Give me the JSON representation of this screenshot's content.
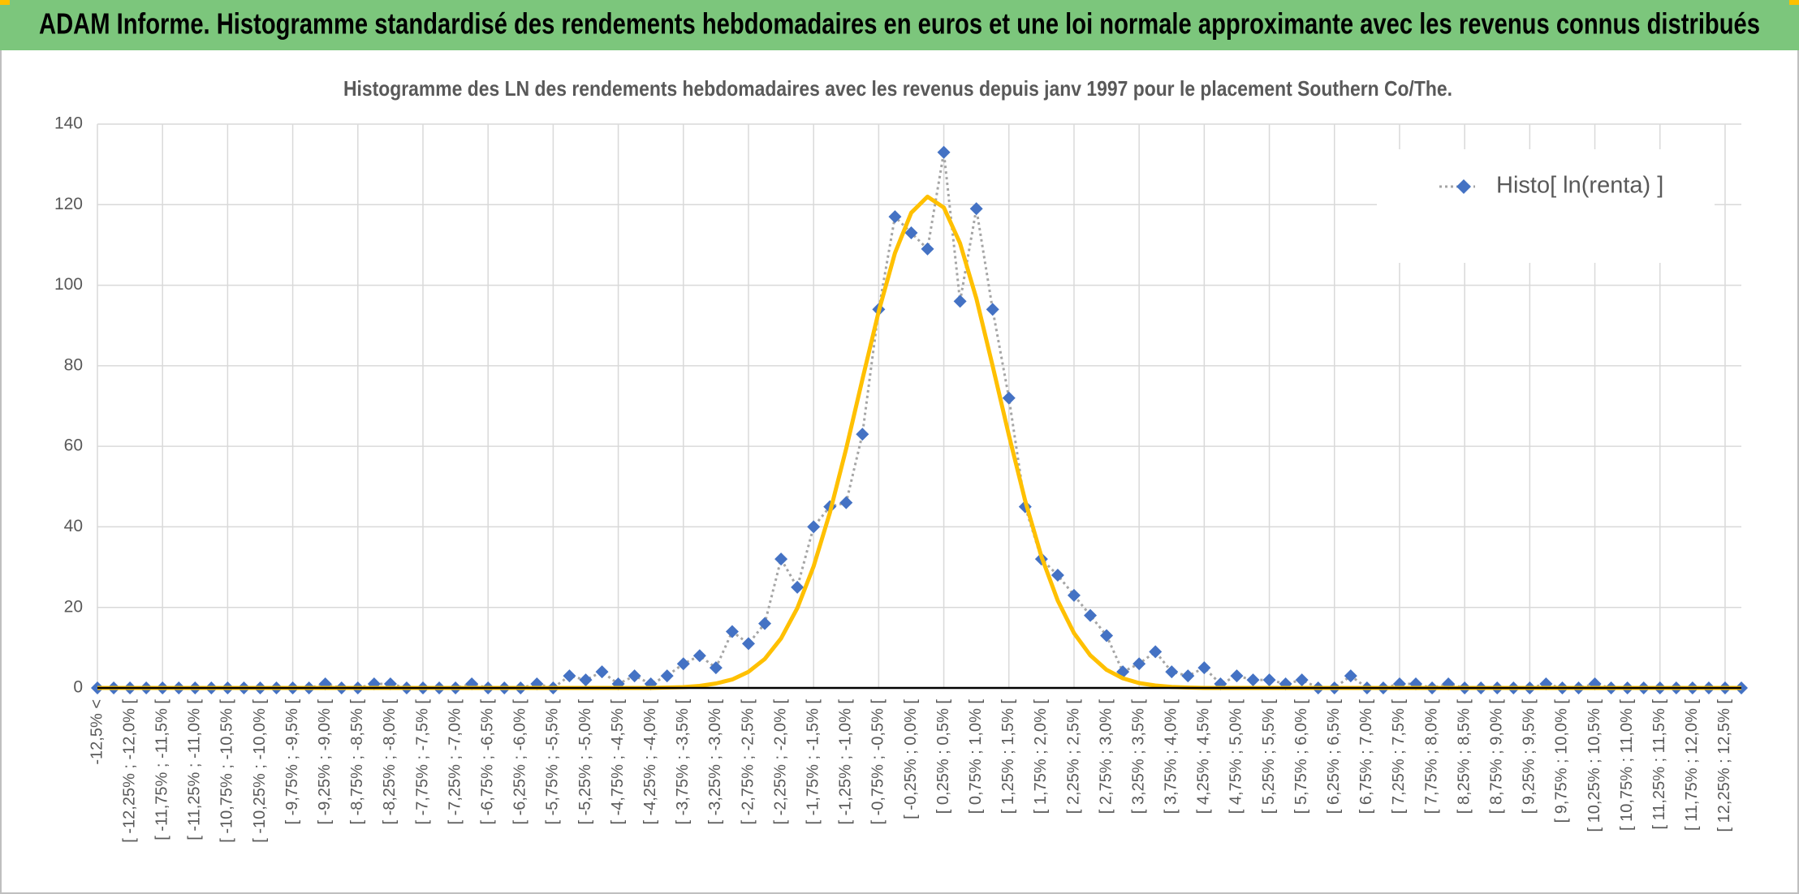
{
  "chart_data": {
    "type": "line",
    "title": "ADAM Informe. Histogramme standardisé des rendements hebdomadaires en euros et une loi normale approximante avec les revenus connus distribués",
    "subtitle": "Histogramme des LN des rendements hebdomadaires avec les revenus depuis janv 1997 pour le placement Southern Co/The.",
    "categories": [
      "-12,5% <",
      null,
      "[ -12,25% ; -12,0% [",
      null,
      "[ -11,75% ; -11,5% [",
      null,
      "[ -11,25% ; -11,0% [",
      null,
      "[ -10,75% ; -10,5% [",
      null,
      "[ -10,25% ; -10,0% [",
      null,
      "[ -9,75% ; -9,5% [",
      null,
      "[ -9,25% ; -9,0% [",
      null,
      "[ -8,75% ; -8,5% [",
      null,
      "[ -8,25% ; -8,0% [",
      null,
      "[ -7,75% ; -7,5% [",
      null,
      "[ -7,25% ; -7,0% [",
      null,
      "[ -6,75% ; -6,5% [",
      null,
      "[ -6,25% ; -6,0% [",
      null,
      "[ -5,75% ; -5,5% [",
      null,
      "[ -5,25% ; -5,0% [",
      null,
      "[ -4,75% ; -4,5% [",
      null,
      "[ -4,25% ; -4,0% [",
      null,
      "[ -3,75% ; -3,5% [",
      null,
      "[ -3,25% ; -3,0% [",
      null,
      "[ -2,75% ; -2,5% [",
      null,
      "[ -2,25% ; -2,0% [",
      null,
      "[ -1,75% ; -1,5% [",
      null,
      "[ -1,25% ; -1,0% [",
      null,
      "[ -0,75% ; -0,5% [",
      null,
      "[ -0,25% ; 0,0% [",
      null,
      "[ 0,25% ; 0,5% [",
      null,
      "[ 0,75% ; 1,0% [",
      null,
      "[ 1,25% ; 1,5% [",
      null,
      "[ 1,75% ; 2,0% [",
      null,
      "[ 2,25% ; 2,5% [",
      null,
      "[ 2,75% ; 3,0% [",
      null,
      "[ 3,25% ; 3,5% [",
      null,
      "[ 3,75% ; 4,0% [",
      null,
      "[ 4,25% ; 4,5% [",
      null,
      "[ 4,75% ; 5,0% [",
      null,
      "[ 5,25% ; 5,5% [",
      null,
      "[ 5,75% ; 6,0% [",
      null,
      "[ 6,25% ; 6,5% [",
      null,
      "[ 6,75% ; 7,0% [",
      null,
      "[ 7,25% ; 7,5% [",
      null,
      "[ 7,75% ; 8,0% [",
      null,
      "[ 8,25% ; 8,5% [",
      null,
      "[ 8,75% ; 9,0% [",
      null,
      "[ 9,25% ; 9,5% [",
      null,
      "[ 9,75% ; 10,0% [",
      null,
      "[ 10,25% ; 10,5% [",
      null,
      "[ 10,75% ; 11,0% [",
      null,
      "[ 11,25% ; 11,5% [",
      null,
      "[ 11,75% ; 12,0% [",
      null,
      "[ 12,25% ; 12,5% [",
      null
    ],
    "series": [
      {
        "name": "Histo[ ln(renta) ]",
        "color": "#4472c4",
        "line_color": "#a5a5a5",
        "values": [
          0,
          0,
          0,
          0,
          0,
          0,
          0,
          0,
          0,
          0,
          0,
          0,
          0,
          0,
          1,
          0,
          0,
          1,
          1,
          0,
          0,
          0,
          0,
          1,
          0,
          0,
          0,
          1,
          0,
          3,
          2,
          4,
          1,
          3,
          1,
          3,
          6,
          8,
          5,
          14,
          11,
          16,
          32,
          25,
          40,
          45,
          46,
          63,
          94,
          117,
          113,
          109,
          133,
          96,
          119,
          94,
          72,
          45,
          32,
          28,
          23,
          18,
          13,
          4,
          6,
          9,
          4,
          3,
          5,
          1,
          3,
          2,
          2,
          1,
          2,
          0,
          0,
          3,
          0,
          0,
          1,
          1,
          0,
          1,
          0,
          0,
          0,
          0,
          0,
          1,
          0,
          0,
          1,
          0,
          0,
          0,
          0,
          0,
          0,
          0,
          0,
          0
        ]
      },
      {
        "color": "#ffc000",
        "values": [
          0,
          0,
          0,
          0,
          0,
          0,
          0,
          0,
          0,
          0,
          0,
          0,
          0,
          0,
          0,
          0,
          0,
          0,
          0,
          0,
          0,
          0,
          0,
          0,
          0,
          0,
          0,
          0,
          0,
          0,
          0,
          0,
          0,
          0,
          0,
          0.1,
          0.2,
          0.5,
          1.1,
          2.1,
          4,
          7.2,
          12.3,
          19.8,
          30.2,
          43.5,
          59.4,
          76.6,
          93.5,
          108,
          118,
          122,
          119.3,
          110.4,
          96.7,
          80,
          62.7,
          46.5,
          32.6,
          21.7,
          13.6,
          8.1,
          4.5,
          2.4,
          1.2,
          0.6,
          0.25,
          0.1,
          0,
          0,
          0,
          0,
          0,
          0,
          0,
          0,
          0,
          0,
          0,
          0,
          0,
          0,
          0,
          0,
          0,
          0,
          0,
          0,
          0,
          0,
          0,
          0,
          0,
          0,
          0,
          0,
          0,
          0,
          0,
          0,
          0,
          0
        ]
      }
    ],
    "ylim": [
      0,
      140
    ],
    "yticks": [
      0,
      20,
      40,
      60,
      80,
      100,
      120,
      140
    ],
    "grid": true,
    "legend": "top-right"
  }
}
